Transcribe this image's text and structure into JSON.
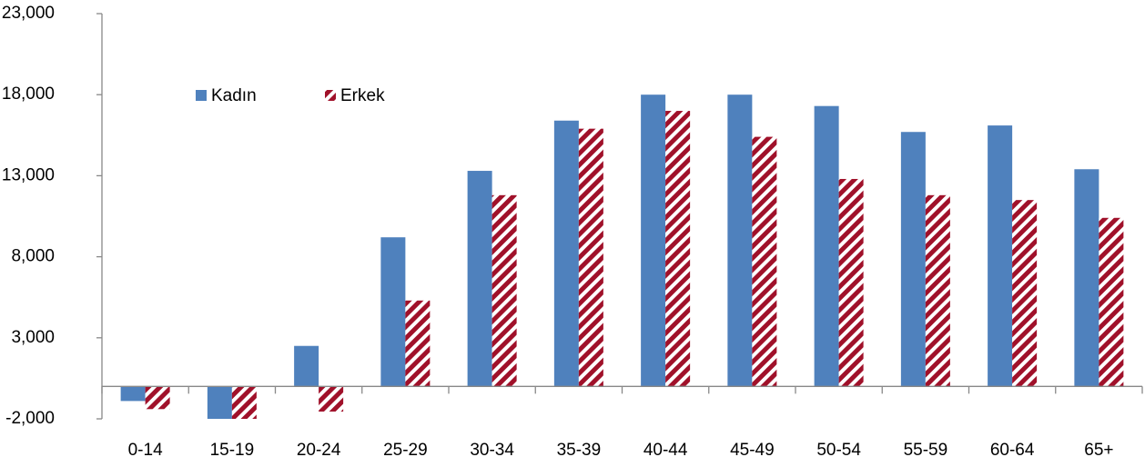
{
  "chart_data": {
    "type": "bar",
    "categories": [
      "0-14",
      "15-19",
      "20-24",
      "25-29",
      "30-34",
      "35-39",
      "40-44",
      "45-49",
      "50-54",
      "55-59",
      "60-64",
      "65+"
    ],
    "series": [
      {
        "name": "Kadın",
        "color": "#4f81bd",
        "values": [
          -900,
          -2000,
          2500,
          9200,
          13300,
          16400,
          18000,
          18000,
          17300,
          15700,
          16100,
          13400
        ]
      },
      {
        "name": "Erkek",
        "color": "#a0112a",
        "pattern": "stripes",
        "values": [
          -1400,
          -2000,
          -1550,
          5300,
          11800,
          15900,
          17000,
          15400,
          12800,
          11800,
          11500,
          10400
        ]
      }
    ],
    "ylim": [
      -2000,
      23000
    ],
    "yticks": [
      {
        "value": -2000,
        "label": "-2,000"
      },
      {
        "value": 3000,
        "label": "3,000"
      },
      {
        "value": 8000,
        "label": "8,000"
      },
      {
        "value": 13000,
        "label": "13,000"
      },
      {
        "value": 18000,
        "label": "18,000"
      },
      {
        "value": 23000,
        "label": "23,000"
      }
    ],
    "grid": false,
    "legend": "top-left"
  }
}
